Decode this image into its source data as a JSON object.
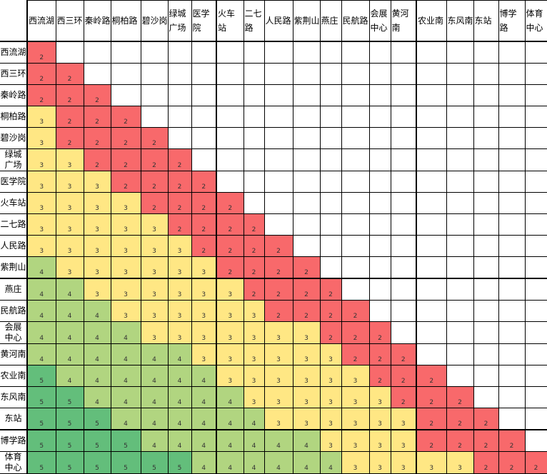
{
  "stations": [
    "西流湖",
    "西三环",
    "秦岭路",
    "桐柏路",
    "碧沙岗",
    "绿城广场",
    "医学院",
    "火车站",
    "二七路",
    "人民路",
    "紫荆山",
    "燕庄",
    "民航路",
    "会展中心",
    "黄河南",
    "农业南",
    "东风南",
    "东站",
    "博学路",
    "体育中心"
  ],
  "fares": [
    [
      2
    ],
    [
      2,
      2
    ],
    [
      2,
      2,
      2
    ],
    [
      3,
      2,
      2,
      2
    ],
    [
      3,
      2,
      2,
      2,
      2
    ],
    [
      3,
      3,
      2,
      2,
      2,
      2
    ],
    [
      3,
      3,
      3,
      2,
      2,
      2,
      2
    ],
    [
      3,
      3,
      3,
      3,
      2,
      2,
      2,
      2
    ],
    [
      3,
      3,
      3,
      3,
      3,
      2,
      2,
      2,
      2
    ],
    [
      3,
      3,
      3,
      3,
      3,
      3,
      2,
      2,
      2,
      2
    ],
    [
      4,
      3,
      3,
      3,
      3,
      3,
      3,
      2,
      2,
      2,
      2
    ],
    [
      4,
      4,
      3,
      3,
      3,
      3,
      3,
      3,
      2,
      2,
      2,
      2
    ],
    [
      4,
      4,
      4,
      3,
      3,
      3,
      3,
      3,
      3,
      2,
      2,
      2,
      2
    ],
    [
      4,
      4,
      4,
      4,
      3,
      3,
      3,
      3,
      3,
      3,
      3,
      2,
      2,
      2
    ],
    [
      4,
      4,
      4,
      4,
      4,
      4,
      3,
      3,
      3,
      3,
      3,
      3,
      2,
      2,
      2
    ],
    [
      5,
      4,
      4,
      4,
      4,
      4,
      4,
      3,
      3,
      3,
      3,
      3,
      3,
      2,
      2,
      2
    ],
    [
      5,
      5,
      4,
      4,
      4,
      4,
      4,
      4,
      3,
      3,
      3,
      3,
      3,
      3,
      2,
      2,
      2
    ],
    [
      5,
      5,
      5,
      4,
      4,
      4,
      4,
      4,
      4,
      3,
      3,
      3,
      3,
      3,
      3,
      2,
      2,
      2
    ],
    [
      5,
      5,
      5,
      5,
      4,
      4,
      4,
      4,
      4,
      4,
      4,
      3,
      3,
      3,
      3,
      2,
      2,
      2,
      2
    ],
    [
      5,
      5,
      5,
      5,
      5,
      5,
      4,
      4,
      4,
      4,
      4,
      4,
      3,
      3,
      3,
      3,
      3,
      2,
      2,
      2
    ]
  ],
  "fare_colors": {
    "2": "#F8696B",
    "3": "#FFE784",
    "4": "#B1D580",
    "5": "#63BE7B"
  }
}
